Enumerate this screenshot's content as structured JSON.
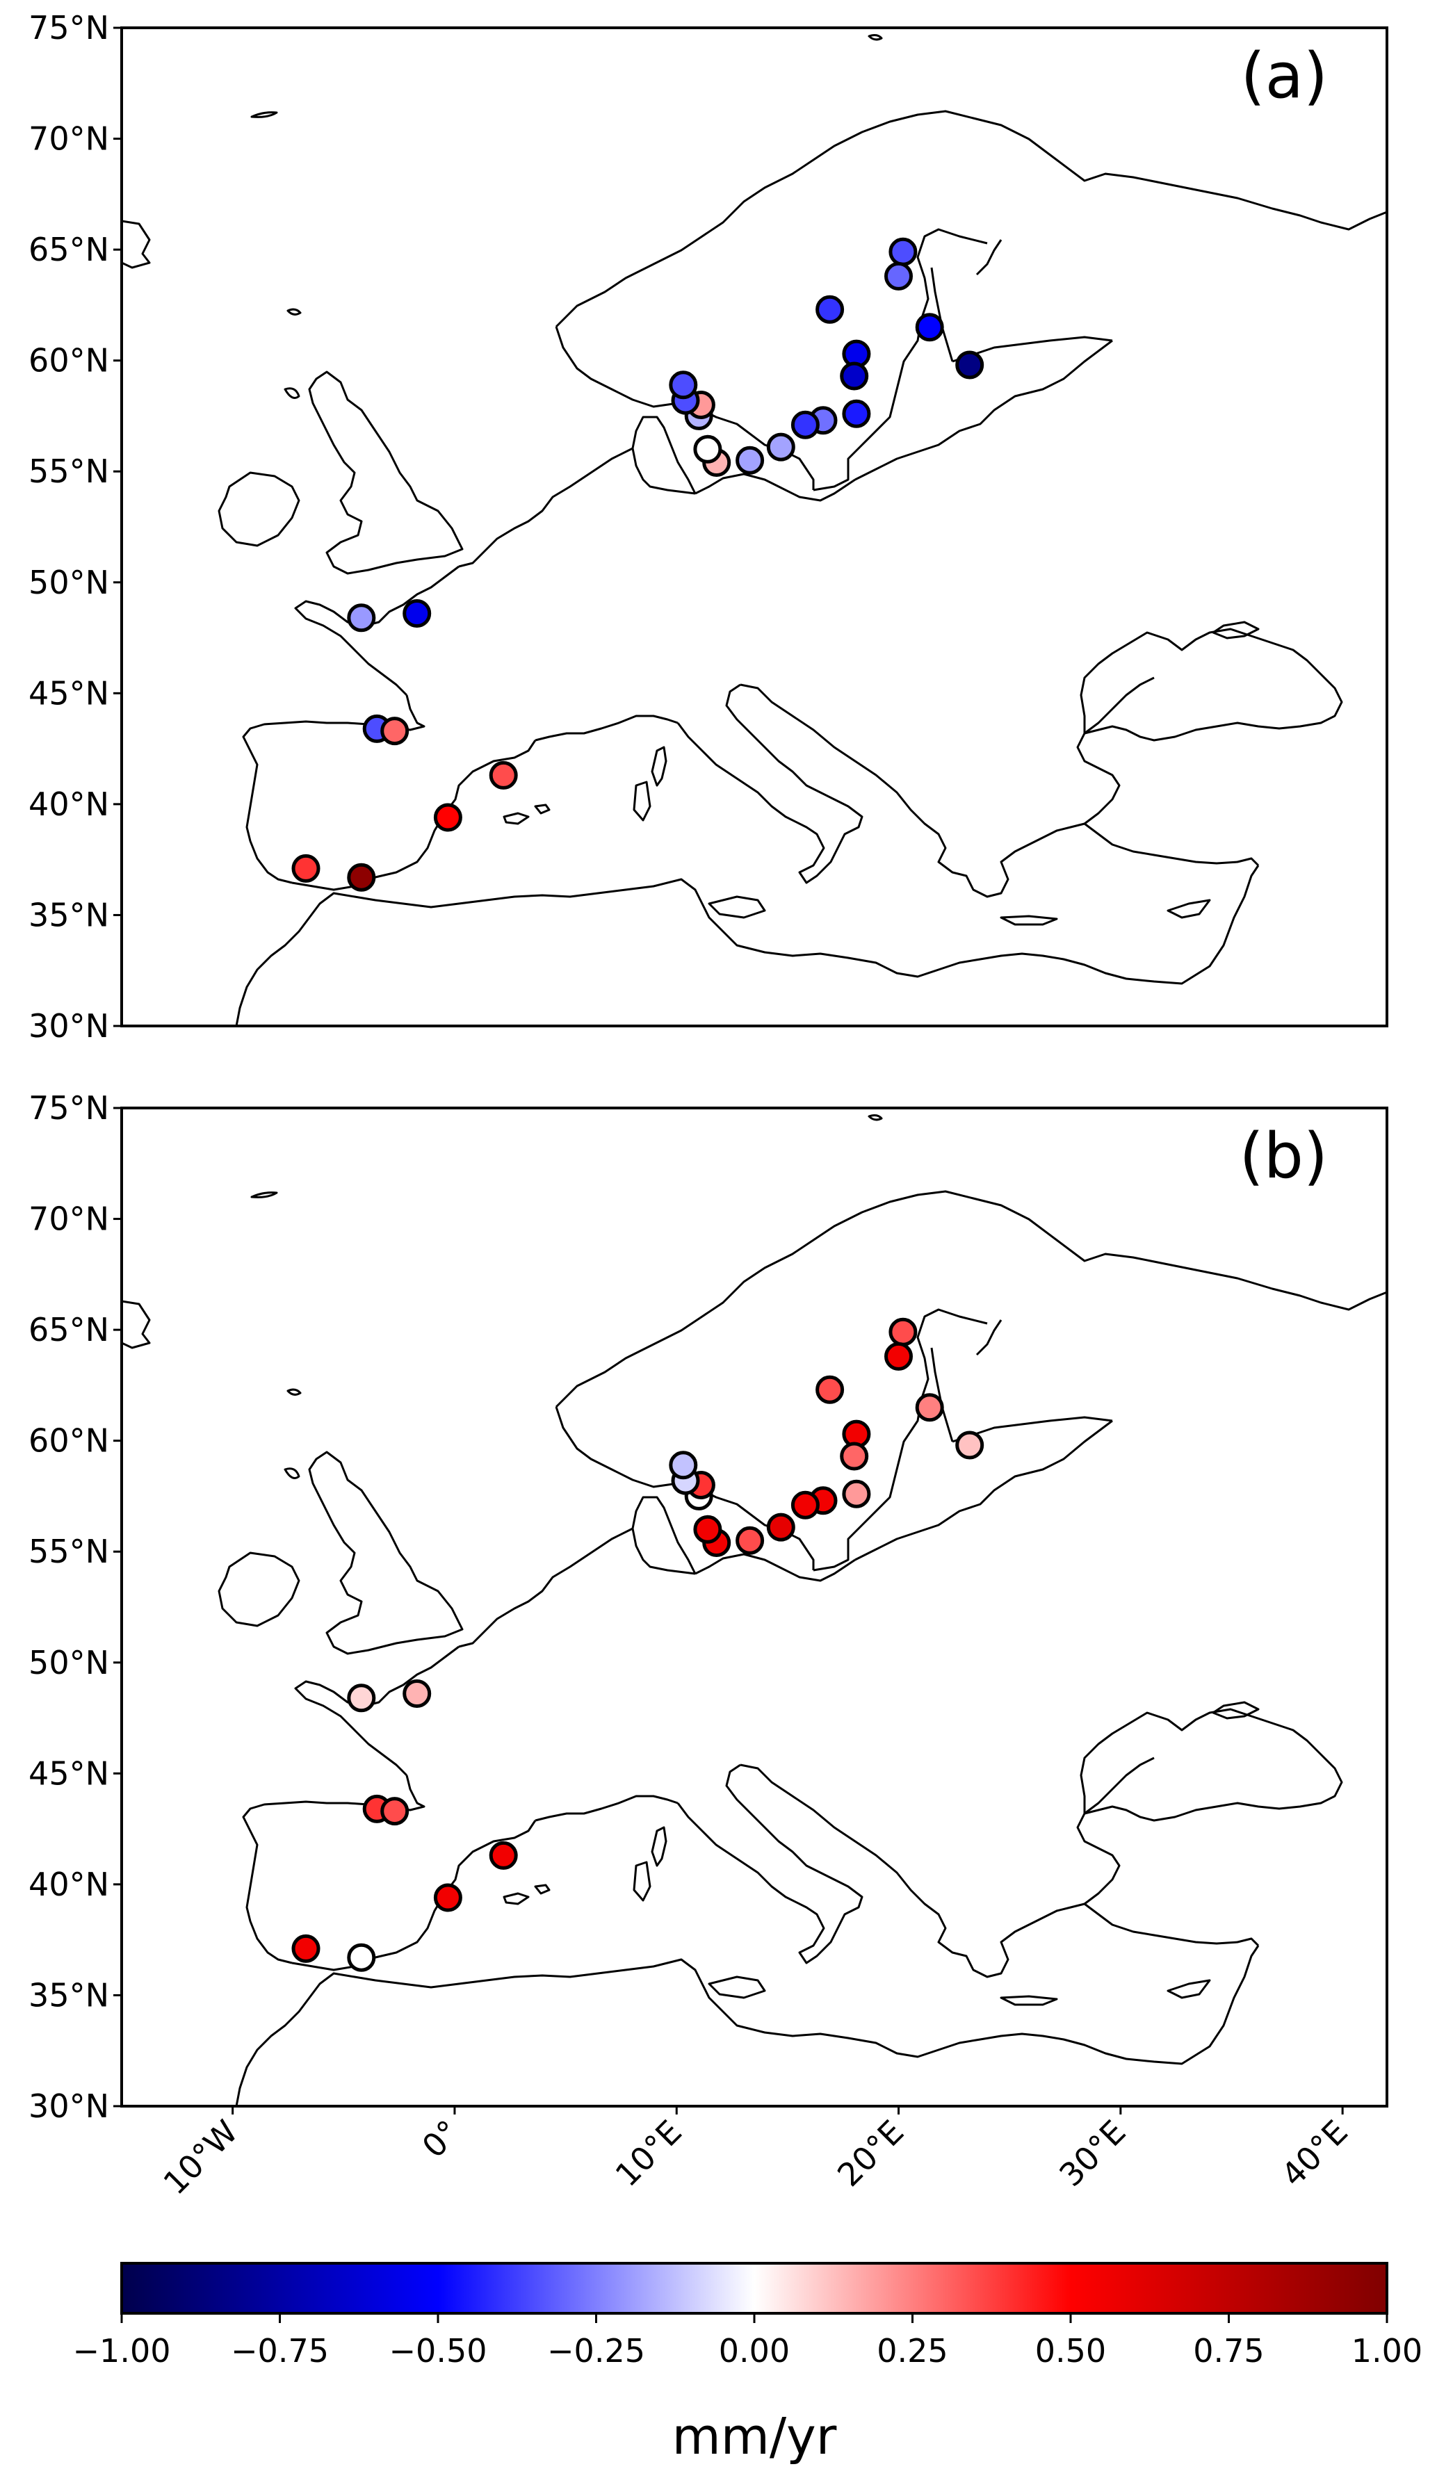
{
  "chart_data": {
    "type": "scatter",
    "unit_label": "mm/yr",
    "colorbar": {
      "vmin": -1.0,
      "vmax": 1.0,
      "ticks": [
        "−1.00",
        "−0.75",
        "−0.50",
        "−0.25",
        "0.00",
        "0.25",
        "0.50",
        "0.75",
        "1.00"
      ],
      "colors": [
        "#00004c",
        "#0000ff",
        "#ffffff",
        "#ff0000",
        "#800000"
      ]
    },
    "lat_ticks": [
      "75°N",
      "70°N",
      "65°N",
      "60°N",
      "55°N",
      "50°N",
      "45°N",
      "40°N",
      "35°N",
      "30°N"
    ],
    "lon_ticks": [
      "10°W",
      "0°",
      "10°E",
      "20°E",
      "30°E",
      "40°E"
    ],
    "lon_range": [
      -15,
      42
    ],
    "lat_range": [
      30,
      75
    ],
    "panels": [
      {
        "label": "(a)",
        "stations": [
          {
            "lon": 20.2,
            "lat": 64.9,
            "value": -0.35
          },
          {
            "lon": 20.0,
            "lat": 63.8,
            "value": -0.3
          },
          {
            "lon": 21.4,
            "lat": 61.5,
            "value": -0.5
          },
          {
            "lon": 23.2,
            "lat": 59.8,
            "value": -0.85
          },
          {
            "lon": 16.9,
            "lat": 62.3,
            "value": -0.4
          },
          {
            "lon": 18.1,
            "lat": 60.3,
            "value": -0.55
          },
          {
            "lon": 18.0,
            "lat": 59.3,
            "value": -0.65
          },
          {
            "lon": 18.1,
            "lat": 57.6,
            "value": -0.45
          },
          {
            "lon": 16.6,
            "lat": 57.3,
            "value": -0.28
          },
          {
            "lon": 15.8,
            "lat": 57.1,
            "value": -0.4
          },
          {
            "lon": 14.7,
            "lat": 56.1,
            "value": -0.18
          },
          {
            "lon": 13.3,
            "lat": 55.5,
            "value": -0.18
          },
          {
            "lon": 11.8,
            "lat": 55.4,
            "value": 0.15
          },
          {
            "lon": 11.4,
            "lat": 56.0,
            "value": 0.0
          },
          {
            "lon": 11.0,
            "lat": 57.5,
            "value": -0.15
          },
          {
            "lon": 11.1,
            "lat": 58.0,
            "value": 0.2
          },
          {
            "lon": 10.4,
            "lat": 58.2,
            "value": -0.35
          },
          {
            "lon": 10.3,
            "lat": 58.9,
            "value": -0.35
          },
          {
            "lon": -4.2,
            "lat": 48.4,
            "value": -0.2
          },
          {
            "lon": -1.7,
            "lat": 48.6,
            "value": -0.55
          },
          {
            "lon": -3.5,
            "lat": 43.4,
            "value": -0.35
          },
          {
            "lon": -2.7,
            "lat": 43.3,
            "value": 0.3
          },
          {
            "lon": 2.2,
            "lat": 41.3,
            "value": 0.35
          },
          {
            "lon": -0.3,
            "lat": 39.4,
            "value": 0.5
          },
          {
            "lon": -6.7,
            "lat": 37.1,
            "value": 0.4
          },
          {
            "lon": -4.2,
            "lat": 36.7,
            "value": 0.95
          }
        ]
      },
      {
        "label": "(b)",
        "stations": [
          {
            "lon": 20.2,
            "lat": 64.9,
            "value": 0.35
          },
          {
            "lon": 20.0,
            "lat": 63.8,
            "value": 0.55
          },
          {
            "lon": 21.4,
            "lat": 61.5,
            "value": 0.25
          },
          {
            "lon": 23.2,
            "lat": 59.8,
            "value": 0.12
          },
          {
            "lon": 16.9,
            "lat": 62.3,
            "value": 0.35
          },
          {
            "lon": 18.1,
            "lat": 60.3,
            "value": 0.55
          },
          {
            "lon": 18.0,
            "lat": 59.3,
            "value": 0.3
          },
          {
            "lon": 18.1,
            "lat": 57.6,
            "value": 0.2
          },
          {
            "lon": 16.6,
            "lat": 57.3,
            "value": 0.55
          },
          {
            "lon": 15.8,
            "lat": 57.1,
            "value": 0.55
          },
          {
            "lon": 14.7,
            "lat": 56.1,
            "value": 0.6
          },
          {
            "lon": 13.3,
            "lat": 55.5,
            "value": 0.35
          },
          {
            "lon": 11.8,
            "lat": 55.4,
            "value": 0.55
          },
          {
            "lon": 11.4,
            "lat": 56.0,
            "value": 0.55
          },
          {
            "lon": 11.0,
            "lat": 57.5,
            "value": 0.0
          },
          {
            "lon": 11.1,
            "lat": 58.0,
            "value": 0.4
          },
          {
            "lon": 10.4,
            "lat": 58.2,
            "value": -0.08
          },
          {
            "lon": 10.3,
            "lat": 58.9,
            "value": -0.12
          },
          {
            "lon": -4.2,
            "lat": 48.4,
            "value": 0.08
          },
          {
            "lon": -1.7,
            "lat": 48.6,
            "value": 0.15
          },
          {
            "lon": -3.5,
            "lat": 43.4,
            "value": 0.4
          },
          {
            "lon": -2.7,
            "lat": 43.3,
            "value": 0.35
          },
          {
            "lon": 2.2,
            "lat": 41.3,
            "value": 0.55
          },
          {
            "lon": -0.3,
            "lat": 39.4,
            "value": 0.55
          },
          {
            "lon": -6.7,
            "lat": 37.1,
            "value": 0.55
          },
          {
            "lon": -4.2,
            "lat": 36.7,
            "value": 0.0
          }
        ]
      }
    ]
  }
}
